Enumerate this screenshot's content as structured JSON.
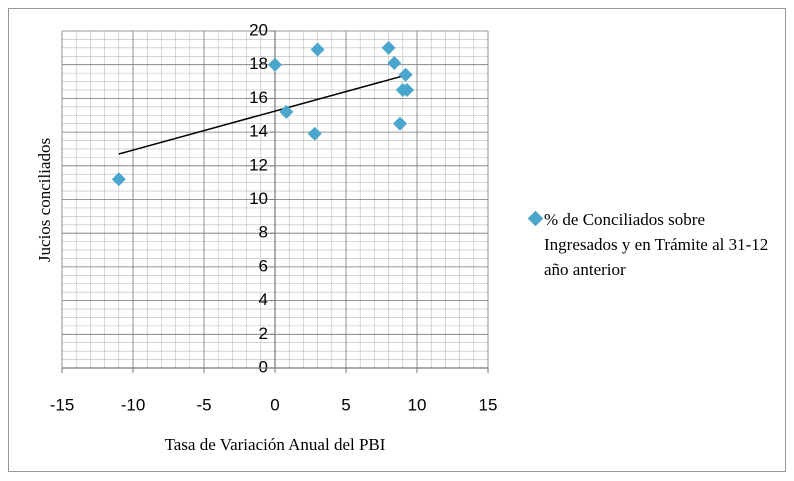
{
  "chart_data": {
    "type": "scatter",
    "xlabel": "Tasa de Variación Anual del PBI",
    "ylabel": "Jucios conciliados",
    "series": [
      {
        "name": "% de Conciliados sobre Ingresados y en Trámite al 31-12 año anterior",
        "color": "#4aa6cc",
        "x": [
          -11,
          0,
          0.8,
          2.8,
          3,
          8,
          8.4,
          8.8,
          9,
          9.3,
          9.2
        ],
        "values": [
          11.2,
          18,
          15.2,
          13.9,
          18.9,
          19,
          18.1,
          14.5,
          16.5,
          16.5,
          17.4
        ]
      }
    ],
    "trendline": {
      "x": [
        -11,
        9.3
      ],
      "values": [
        12.7,
        17.4
      ],
      "color": "#000000"
    },
    "xlim": [
      -15,
      15
    ],
    "xticks": [
      -15,
      -10,
      -5,
      0,
      5,
      10,
      15
    ],
    "ylim": [
      0,
      20
    ],
    "yticks": [
      0,
      2,
      4,
      6,
      8,
      10,
      12,
      14,
      16,
      18,
      20
    ],
    "grid": true,
    "minor_grid": true,
    "legend": "right"
  }
}
